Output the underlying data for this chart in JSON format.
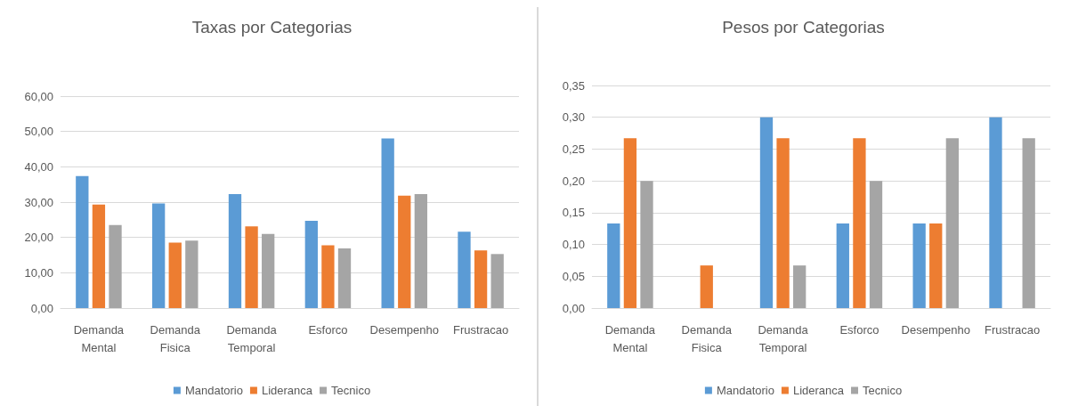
{
  "chart_data": [
    {
      "type": "bar",
      "title": "Taxas por Categorias",
      "categories": [
        "Demanda Mental",
        "Demanda Fisica",
        "Demanda Temporal",
        "Esforco",
        "Desempenho",
        "Frustracao"
      ],
      "series": [
        {
          "name": "Mandatorio",
          "color": "#5b9bd5",
          "values": [
            37.4,
            29.6,
            32.3,
            24.7,
            48.0,
            21.6
          ]
        },
        {
          "name": "Lideranca",
          "color": "#ed7d31",
          "values": [
            29.3,
            18.5,
            23.1,
            17.8,
            31.8,
            16.3
          ]
        },
        {
          "name": "Tecnico",
          "color": "#a5a5a5",
          "values": [
            23.5,
            19.1,
            21.0,
            16.9,
            32.3,
            15.3
          ]
        }
      ],
      "ylim": [
        0,
        60
      ],
      "yticks": [
        {
          "value": 0,
          "label": "0,00"
        },
        {
          "value": 10,
          "label": "10,00"
        },
        {
          "value": 20,
          "label": "20,00"
        },
        {
          "value": 30,
          "label": "30,00"
        },
        {
          "value": 40,
          "label": "40,00"
        },
        {
          "value": 50,
          "label": "50,00"
        },
        {
          "value": 60,
          "label": "60,00"
        }
      ],
      "grid": "y",
      "legend": "bottom"
    },
    {
      "type": "bar",
      "title": "Pesos por Categorias",
      "categories": [
        "Demanda Mental",
        "Demanda Fisica",
        "Demanda Temporal",
        "Esforco",
        "Desempenho",
        "Frustracao"
      ],
      "series": [
        {
          "name": "Mandatorio",
          "color": "#5b9bd5",
          "values": [
            0.133,
            0,
            0.3,
            0.133,
            0.133,
            0.3
          ]
        },
        {
          "name": "Lideranca",
          "color": "#ed7d31",
          "values": [
            0.267,
            0.067,
            0.267,
            0.267,
            0.133,
            0
          ]
        },
        {
          "name": "Tecnico",
          "color": "#a5a5a5",
          "values": [
            0.2,
            0,
            0.067,
            0.2,
            0.267,
            0.267
          ]
        }
      ],
      "ylim": [
        0,
        0.35
      ],
      "yticks": [
        {
          "value": 0,
          "label": "0,00"
        },
        {
          "value": 0.05,
          "label": "0,05"
        },
        {
          "value": 0.1,
          "label": "0,10"
        },
        {
          "value": 0.15,
          "label": "0,15"
        },
        {
          "value": 0.2,
          "label": "0,20"
        },
        {
          "value": 0.25,
          "label": "0,25"
        },
        {
          "value": 0.3,
          "label": "0,30"
        },
        {
          "value": 0.35,
          "label": "0,35"
        }
      ],
      "grid": "y",
      "legend": "bottom"
    }
  ]
}
